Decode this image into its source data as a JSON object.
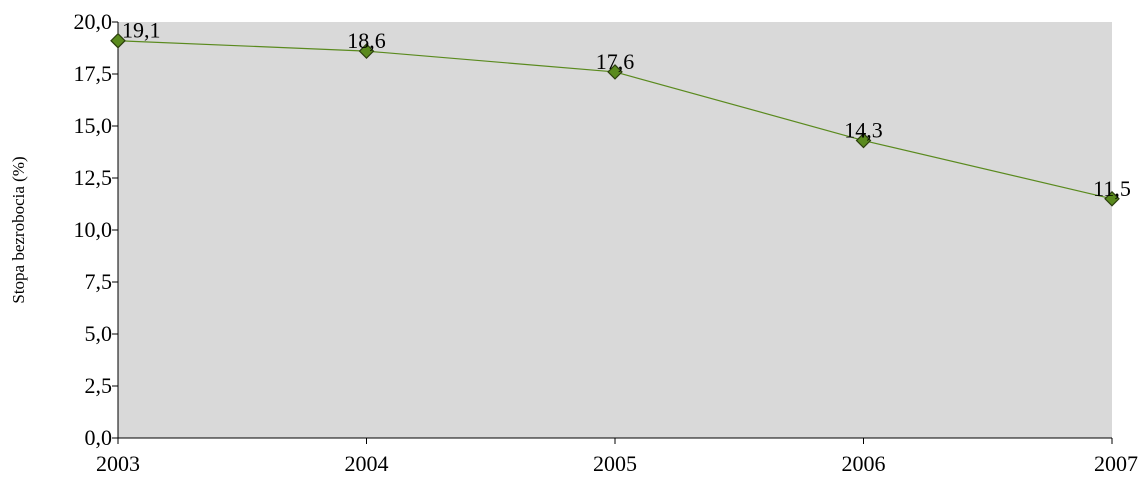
{
  "chart_data": {
    "type": "line",
    "title": "",
    "xlabel": "",
    "ylabel": "Stopa bezrobocia (%)",
    "categories": [
      "2003",
      "2004",
      "2005",
      "2006",
      "2007"
    ],
    "series": [
      {
        "values": [
          19.1,
          18.6,
          17.6,
          14.3,
          11.5
        ],
        "data_labels": [
          "19,1",
          "18,6",
          "17,6",
          "14,3",
          "11,5"
        ],
        "color": "#5a8a1e",
        "marker": "diamond"
      }
    ],
    "ylim": [
      0,
      20
    ],
    "yticks": [
      0,
      2.5,
      5,
      7.5,
      10,
      12.5,
      15,
      17.5,
      20
    ],
    "ytick_labels": [
      "0,0",
      "2,5",
      "5,0",
      "7,5",
      "10,0",
      "12,5",
      "15,0",
      "17,5",
      "20,0"
    ],
    "grid": false,
    "legend": "none",
    "plot_background": "#d9d9d9"
  }
}
